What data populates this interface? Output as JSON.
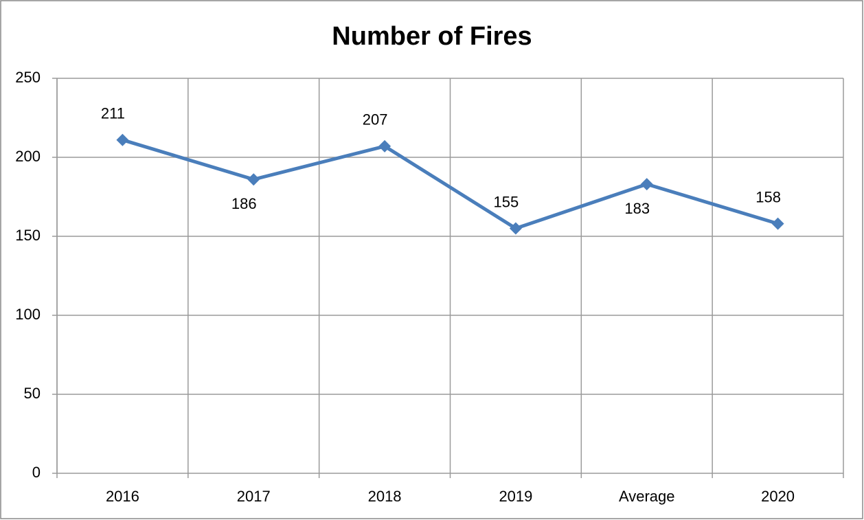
{
  "chart_data": {
    "type": "line",
    "title": "Number of Fires",
    "categories": [
      "2016",
      "2017",
      "2018",
      "2019",
      "Average",
      "2020"
    ],
    "values": [
      211,
      186,
      207,
      155,
      183,
      158
    ],
    "color": "#4a7ebb",
    "ylim": [
      0,
      250
    ],
    "yticks": [
      0,
      50,
      100,
      150,
      200,
      250
    ],
    "grid": true
  }
}
